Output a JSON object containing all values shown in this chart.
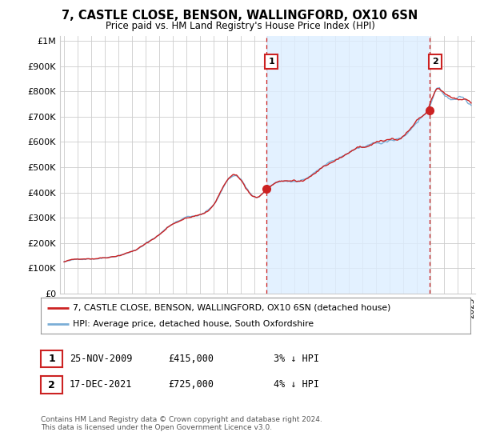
{
  "title": "7, CASTLE CLOSE, BENSON, WALLINGFORD, OX10 6SN",
  "subtitle": "Price paid vs. HM Land Registry's House Price Index (HPI)",
  "ylabel_ticks": [
    "£0",
    "£100K",
    "£200K",
    "£300K",
    "£400K",
    "£500K",
    "£600K",
    "£700K",
    "£800K",
    "£900K",
    "£1M"
  ],
  "ytick_vals": [
    0,
    100000,
    200000,
    300000,
    400000,
    500000,
    600000,
    700000,
    800000,
    900000,
    1000000
  ],
  "ylim": [
    0,
    1020000
  ],
  "xlim_start": 1994.7,
  "xlim_end": 2025.3,
  "hpi_color": "#7aaed6",
  "price_color": "#cc2222",
  "shade_color": "#ddeeff",
  "sale1_x": 2009.9,
  "sale1_y": 415000,
  "sale2_x": 2021.96,
  "sale2_y": 725000,
  "annotation1_label": "1",
  "annotation2_label": "2",
  "legend_line1": "7, CASTLE CLOSE, BENSON, WALLINGFORD, OX10 6SN (detached house)",
  "legend_line2": "HPI: Average price, detached house, South Oxfordshire",
  "table_row1": [
    "1",
    "25-NOV-2009",
    "£415,000",
    "3% ↓ HPI"
  ],
  "table_row2": [
    "2",
    "17-DEC-2021",
    "£725,000",
    "4% ↓ HPI"
  ],
  "footnote": "Contains HM Land Registry data © Crown copyright and database right 2024.\nThis data is licensed under the Open Government Licence v3.0.",
  "bg_color": "#ffffff",
  "grid_color": "#cccccc",
  "annotation_color": "#cc2222"
}
